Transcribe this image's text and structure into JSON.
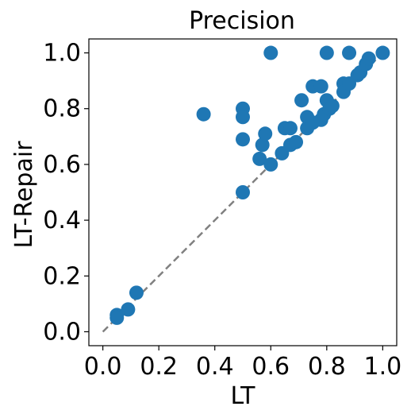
{
  "chart_data": {
    "type": "scatter",
    "title": "Precision",
    "xlabel": "LT",
    "ylabel": "LT-Repair",
    "xlim": [
      -0.05,
      1.05
    ],
    "ylim": [
      -0.05,
      1.05
    ],
    "xticks": [
      "0.0",
      "0.2",
      "0.4",
      "0.6",
      "0.8",
      "1.0"
    ],
    "yticks": [
      "0.0",
      "0.2",
      "0.4",
      "0.6",
      "0.8",
      "1.0"
    ],
    "grid": false,
    "legend": "none",
    "marker_color": "#1f77b4",
    "reference_line": {
      "style": "dashed",
      "color": "#808080",
      "from": [
        0,
        0
      ],
      "to": [
        1,
        1
      ]
    },
    "points": [
      {
        "x": 0.05,
        "y": 0.06
      },
      {
        "x": 0.05,
        "y": 0.05
      },
      {
        "x": 0.09,
        "y": 0.08
      },
      {
        "x": 0.12,
        "y": 0.14
      },
      {
        "x": 0.36,
        "y": 0.78
      },
      {
        "x": 0.5,
        "y": 0.8
      },
      {
        "x": 0.5,
        "y": 0.77
      },
      {
        "x": 0.5,
        "y": 0.69
      },
      {
        "x": 0.5,
        "y": 0.5
      },
      {
        "x": 0.56,
        "y": 0.62
      },
      {
        "x": 0.57,
        "y": 0.67
      },
      {
        "x": 0.58,
        "y": 0.71
      },
      {
        "x": 0.6,
        "y": 1.0
      },
      {
        "x": 0.6,
        "y": 0.6
      },
      {
        "x": 0.64,
        "y": 0.64
      },
      {
        "x": 0.65,
        "y": 0.73
      },
      {
        "x": 0.67,
        "y": 0.73
      },
      {
        "x": 0.67,
        "y": 0.67
      },
      {
        "x": 0.69,
        "y": 0.68
      },
      {
        "x": 0.71,
        "y": 0.83
      },
      {
        "x": 0.73,
        "y": 0.73
      },
      {
        "x": 0.73,
        "y": 0.77
      },
      {
        "x": 0.75,
        "y": 0.88
      },
      {
        "x": 0.75,
        "y": 0.75
      },
      {
        "x": 0.78,
        "y": 0.88
      },
      {
        "x": 0.78,
        "y": 0.76
      },
      {
        "x": 0.79,
        "y": 0.78
      },
      {
        "x": 0.8,
        "y": 1.0
      },
      {
        "x": 0.8,
        "y": 0.83
      },
      {
        "x": 0.81,
        "y": 0.8
      },
      {
        "x": 0.82,
        "y": 0.81
      },
      {
        "x": 0.86,
        "y": 0.89
      },
      {
        "x": 0.86,
        "y": 0.86
      },
      {
        "x": 0.88,
        "y": 1.0
      },
      {
        "x": 0.88,
        "y": 0.89
      },
      {
        "x": 0.91,
        "y": 0.92
      },
      {
        "x": 0.92,
        "y": 0.93
      },
      {
        "x": 0.94,
        "y": 0.96
      },
      {
        "x": 0.95,
        "y": 0.98
      },
      {
        "x": 1.0,
        "y": 1.0
      }
    ]
  }
}
